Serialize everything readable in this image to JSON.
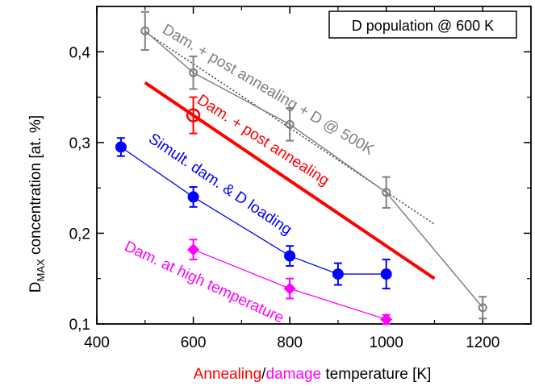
{
  "chart_data": {
    "type": "scatter",
    "xlim": [
      400,
      1300
    ],
    "ylim": [
      0.1,
      0.45
    ],
    "x_ticks": [
      400,
      600,
      800,
      1000,
      1200
    ],
    "y_ticks": [
      0.1,
      0.2,
      0.3,
      0.4
    ],
    "x_tick_labels": [
      "400",
      "600",
      "800",
      "1000",
      "1200"
    ],
    "y_tick_labels": [
      "0,1",
      "0,2",
      "0,3",
      "0,4"
    ],
    "ylabel_main": "D",
    "ylabel_sub": "MAX",
    "ylabel_rest": " concentration [at. %]",
    "xlabel_parts": [
      {
        "text": "Annealing",
        "color": "#ff0000"
      },
      {
        "text": "/",
        "color": "#000000"
      },
      {
        "text": "damage",
        "color": "#ff00ff"
      },
      {
        "text": " temperature [K]",
        "color": "#000000"
      }
    ],
    "legend_box": "D population @ 600 K",
    "grid": false,
    "series": [
      {
        "key": "post-anneal-d500",
        "label": "Dam. + post annealing + D @ 500K",
        "color": "#808080",
        "marker": "open-circle",
        "x": [
          500,
          600,
          800,
          1000,
          1200
        ],
        "y": [
          0.423,
          0.377,
          0.32,
          0.245,
          0.118
        ],
        "yerr": [
          0.021,
          0.018,
          0.018,
          0.017,
          0.012
        ],
        "fit_x": [
          500,
          1100
        ],
        "fit_y": [
          0.422,
          0.21
        ]
      },
      {
        "key": "post-anneal",
        "label": "Dam. + post annealing",
        "color": "#ff0000",
        "marker": "open-circle",
        "x": [
          600
        ],
        "y": [
          0.33
        ],
        "yerr": [
          0.02
        ],
        "fit_x": [
          500,
          1100
        ],
        "fit_y": [
          0.366,
          0.15
        ]
      },
      {
        "key": "simultaneous",
        "label": "Simult. dam. & D loading",
        "color": "#0000ff",
        "marker": "filled-circle",
        "x": [
          450,
          600,
          800,
          900,
          1000
        ],
        "y": [
          0.295,
          0.24,
          0.175,
          0.155,
          0.155
        ],
        "yerr": [
          0.01,
          0.011,
          0.011,
          0.012,
          0.016
        ]
      },
      {
        "key": "high-temp",
        "label": "Dam. at high temperature",
        "color": "#ff00ff",
        "marker": "filled-diamond",
        "x": [
          600,
          800,
          1000
        ],
        "y": [
          0.182,
          0.139,
          0.105
        ],
        "yerr": [
          0.011,
          0.011,
          0.005
        ]
      }
    ]
  }
}
